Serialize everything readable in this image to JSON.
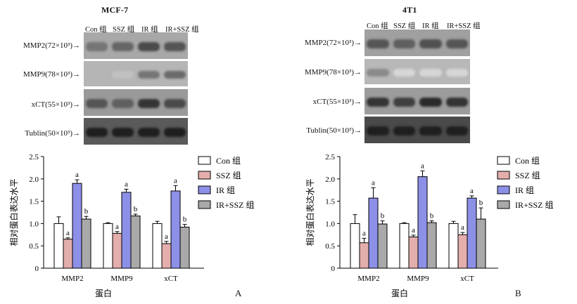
{
  "colors": {
    "con": "#ffffff",
    "ssz": "#e3aeac",
    "ir": "#8c90e6",
    "irssz": "#a9a9a9"
  },
  "panels": [
    {
      "letter": "A",
      "cell_line": "MCF-7",
      "lanes": [
        "Con 组",
        "SSZ 组",
        "IR 组",
        "IR+SSZ 组"
      ],
      "blot_rows": [
        {
          "label": "MMP2(72×10³)→",
          "intensity": [
            0.55,
            0.62,
            0.75,
            0.7
          ],
          "bg": "#a8a8a8"
        },
        {
          "label": "MMP9(78×10³)→",
          "intensity": [
            0.25,
            0.2,
            0.55,
            0.6
          ],
          "bg": "#b5b5b5"
        },
        {
          "label": "xCT(55×10³)→",
          "intensity": [
            0.7,
            0.65,
            0.85,
            0.75
          ],
          "bg": "#9a9a9a"
        },
        {
          "label": "Tublin(50×10³)→",
          "intensity": [
            0.95,
            0.95,
            0.95,
            0.95
          ],
          "bg": "#5a5a5a"
        }
      ],
      "chart_data": {
        "type": "bar",
        "title": "",
        "xlabel": "蛋白",
        "ylabel": "相对蛋白表达水平",
        "ylim": [
          0,
          2.5
        ],
        "yticks": [
          "0",
          "0.5",
          "1.0",
          "1.5",
          "2.0",
          "2.5"
        ],
        "categories": [
          "MMP2",
          "MMP9",
          "xCT"
        ],
        "series": [
          {
            "name": "Con 组",
            "values": [
              1.0,
              1.0,
              1.0
            ],
            "errors": [
              0.15,
              0.02,
              0.05
            ]
          },
          {
            "name": "SSZ 组",
            "values": [
              0.65,
              0.78,
              0.55
            ],
            "errors": [
              0.03,
              0.04,
              0.05
            ]
          },
          {
            "name": "IR 组",
            "values": [
              1.9,
              1.7,
              1.73
            ],
            "errors": [
              0.08,
              0.07,
              0.12
            ]
          },
          {
            "name": "IR+SSZ 组",
            "values": [
              1.1,
              1.17,
              0.92
            ],
            "errors": [
              0.06,
              0.04,
              0.06
            ]
          }
        ],
        "annotations": [
          {
            "series": 1,
            "category": 0,
            "text": "a"
          },
          {
            "series": 2,
            "category": 0,
            "text": "a"
          },
          {
            "series": 3,
            "category": 0,
            "text": "b"
          },
          {
            "series": 1,
            "category": 1,
            "text": "a"
          },
          {
            "series": 2,
            "category": 1,
            "text": "a"
          },
          {
            "series": 3,
            "category": 1,
            "text": "b"
          },
          {
            "series": 1,
            "category": 2,
            "text": "a"
          },
          {
            "series": 2,
            "category": 2,
            "text": "a"
          },
          {
            "series": 3,
            "category": 2,
            "text": "b"
          }
        ],
        "legend": "top-right"
      }
    },
    {
      "letter": "B",
      "cell_line": "4T1",
      "lanes": [
        "Con 组",
        "SSZ 组",
        "IR 组",
        "IR+SSZ 组"
      ],
      "blot_rows": [
        {
          "label": "MMP2(72×10³)→",
          "intensity": [
            0.7,
            0.65,
            0.72,
            0.7
          ],
          "bg": "#a0a0a0"
        },
        {
          "label": "MMP9(78×10³)→",
          "intensity": [
            0.45,
            0.1,
            0.1,
            0.1
          ],
          "bg": "#b8b8b8"
        },
        {
          "label": "xCT(55×10³)→",
          "intensity": [
            0.85,
            0.8,
            0.9,
            0.85
          ],
          "bg": "#9c9c9c"
        },
        {
          "label": "Tublin(50×10³)→",
          "intensity": [
            0.95,
            0.95,
            0.95,
            0.95
          ],
          "bg": "#4a4a4a"
        }
      ],
      "chart_data": {
        "type": "bar",
        "title": "",
        "xlabel": "蛋白",
        "ylabel": "相对蛋白表达水平",
        "ylim": [
          0,
          2.5
        ],
        "yticks": [
          "0",
          "0.5",
          "1.0",
          "1.5",
          "2.0",
          "2.5"
        ],
        "categories": [
          "MMP2",
          "MMP9",
          "xCT"
        ],
        "series": [
          {
            "name": "Con 组",
            "values": [
              1.0,
              1.0,
              1.0
            ],
            "errors": [
              0.2,
              0.02,
              0.05
            ]
          },
          {
            "name": "SSZ 组",
            "values": [
              0.57,
              0.7,
              0.75
            ],
            "errors": [
              0.1,
              0.04,
              0.05
            ]
          },
          {
            "name": "IR 组",
            "values": [
              1.57,
              2.05,
              1.57
            ],
            "errors": [
              0.23,
              0.13,
              0.05
            ]
          },
          {
            "name": "IR+SSZ 组",
            "values": [
              0.99,
              1.02,
              1.1
            ],
            "errors": [
              0.07,
              0.04,
              0.25
            ]
          }
        ],
        "annotations": [
          {
            "series": 1,
            "category": 0,
            "text": "a"
          },
          {
            "series": 2,
            "category": 0,
            "text": "a"
          },
          {
            "series": 3,
            "category": 0,
            "text": "b"
          },
          {
            "series": 1,
            "category": 1,
            "text": "a"
          },
          {
            "series": 2,
            "category": 1,
            "text": "a"
          },
          {
            "series": 3,
            "category": 1,
            "text": "b"
          },
          {
            "series": 1,
            "category": 2,
            "text": "a"
          },
          {
            "series": 2,
            "category": 2,
            "text": "a"
          },
          {
            "series": 3,
            "category": 2,
            "text": "b"
          }
        ],
        "legend": "top-right"
      }
    }
  ]
}
